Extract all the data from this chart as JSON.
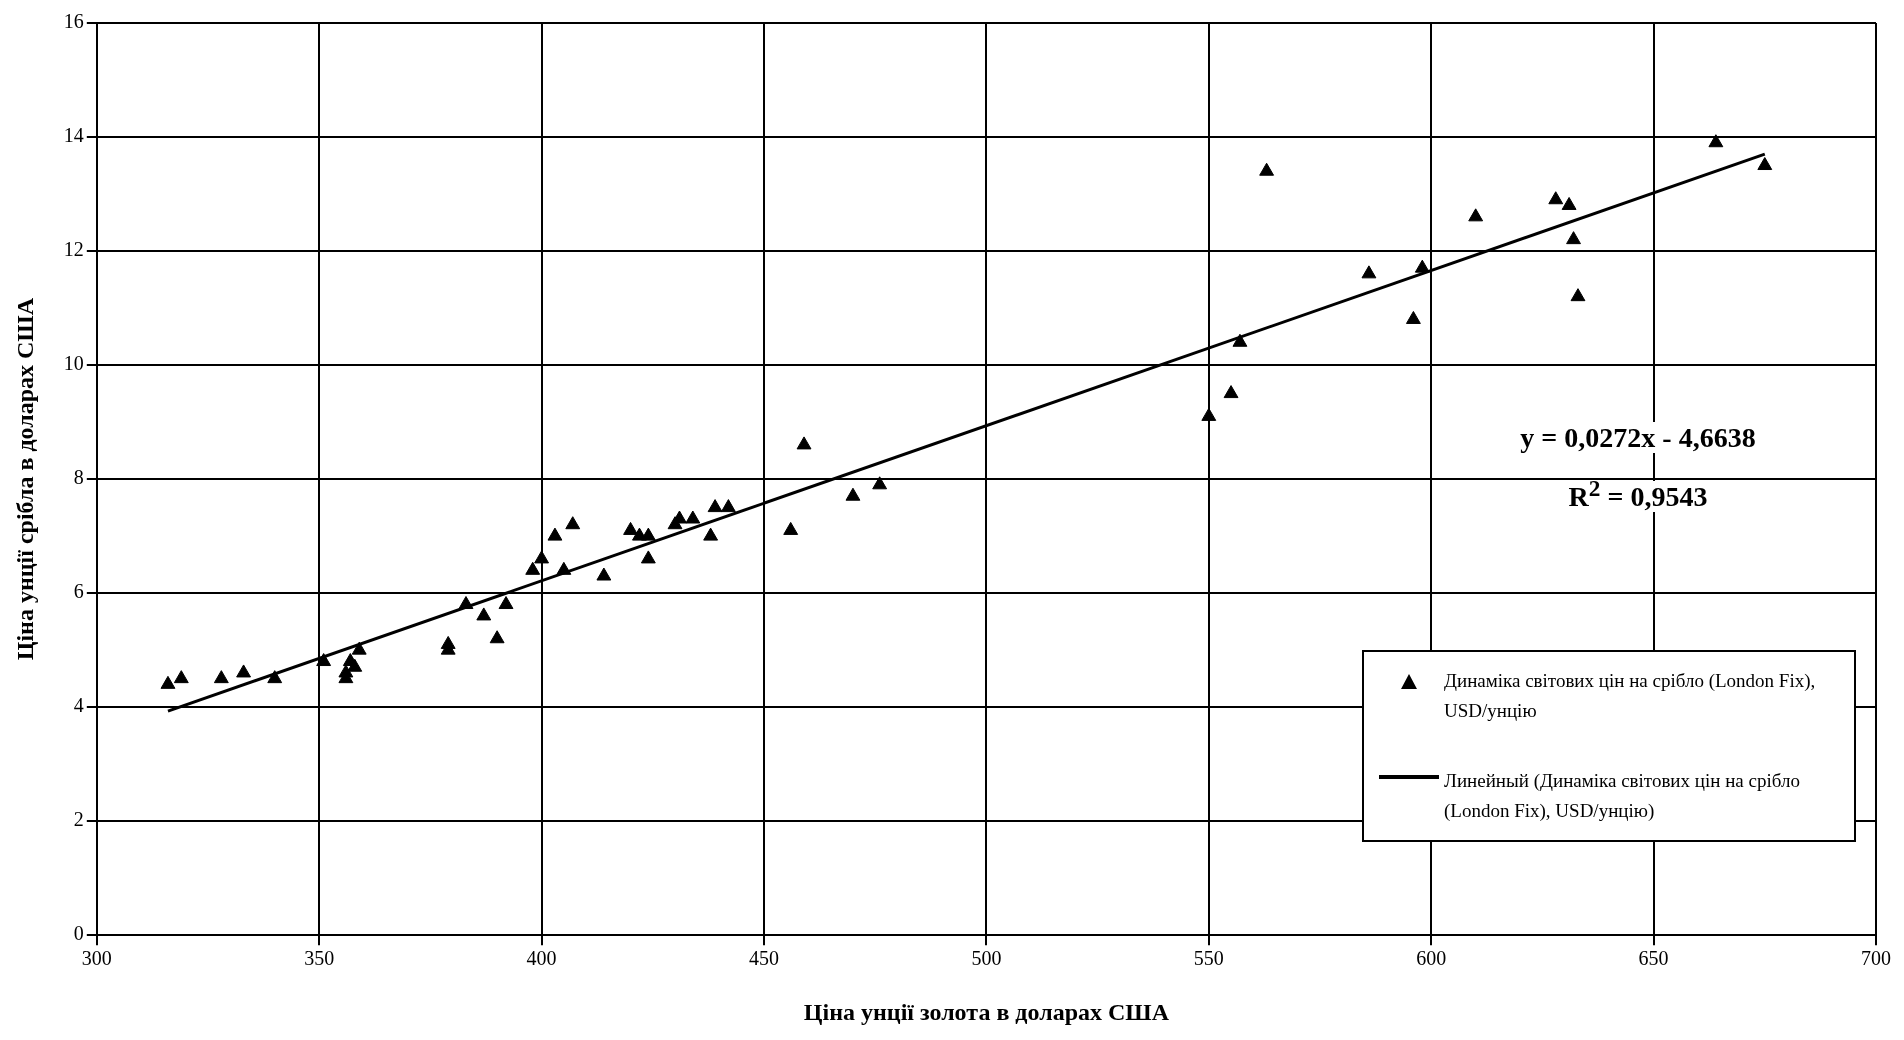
{
  "chart_data": {
    "type": "scatter",
    "xlabel": "Ціна унції золота в доларах США",
    "ylabel": "Ціна унції срібла в доларах США",
    "xlim": [
      300,
      700
    ],
    "xticks": [
      300,
      350,
      400,
      450,
      500,
      550,
      600,
      650,
      700
    ],
    "ylim": [
      0,
      16
    ],
    "yticks": [
      0,
      2,
      4,
      6,
      8,
      10,
      12,
      14,
      16
    ],
    "grid": true,
    "legend": "bottom right",
    "annotations": [
      "y = 0,0272x - 4,6638",
      "R$^{2}$ = 0,9543"
    ],
    "series": [
      {
        "name": "Динаміка світових цін на срібло (London Fix), USD/унцію",
        "marker": "triangle",
        "color": "#000000",
        "x": [
          316,
          319,
          328,
          333,
          340,
          351,
          356,
          356,
          357,
          358,
          359,
          379,
          379,
          383,
          387,
          390,
          392,
          398,
          400,
          403,
          405,
          407,
          414,
          420,
          422,
          424,
          424,
          430,
          431,
          434,
          438,
          439,
          442,
          456,
          459,
          470,
          476,
          550,
          555,
          557,
          563,
          586,
          596,
          598,
          610,
          628,
          631,
          632,
          633,
          664,
          675
        ],
        "values": [
          4.4,
          4.5,
          4.5,
          4.6,
          4.5,
          4.8,
          4.6,
          4.5,
          4.8,
          4.7,
          5.0,
          5.0,
          5.1,
          5.8,
          5.6,
          5.2,
          5.8,
          6.4,
          6.6,
          7.0,
          6.4,
          7.2,
          6.3,
          7.1,
          7.0,
          7.0,
          6.6,
          7.2,
          7.3,
          7.3,
          7.0,
          7.5,
          7.5,
          7.1,
          8.6,
          7.7,
          7.9,
          9.1,
          9.5,
          10.4,
          13.4,
          11.6,
          10.8,
          11.7,
          12.6,
          12.9,
          12.8,
          12.2,
          11.2,
          13.9,
          13.5
        ]
      },
      {
        "name": "Линейный (Динаміка світових цін на срібло (London Fix), USD/унцію)",
        "type": "line",
        "line_style": "solid",
        "marker": "none",
        "color": "#000000",
        "x": [
          316,
          675
        ],
        "values": [
          3.93,
          13.7
        ]
      }
    ]
  }
}
